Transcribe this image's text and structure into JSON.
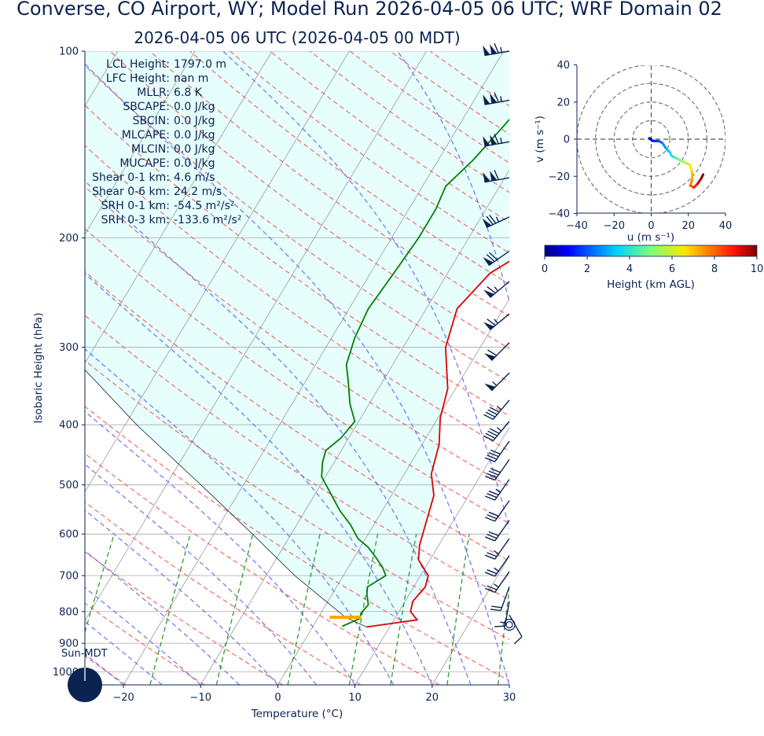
{
  "title": "Converse, CO Airport, WY; Model Run 2026-04-05 06 UTC; WRF Domain 02",
  "subtitle": "2026-04-05 06 UTC  (2026-04-05 00 MDT)",
  "colors": {
    "text": "#0b2351",
    "temperature": "#e00000",
    "dewpoint": "#008000",
    "parcel_shade": "#e6fffd",
    "dry_adiabat": "#ef5350",
    "moist_adiabat": "#4f4fef",
    "mixing_ratio": "#1e8c1e",
    "isotherm": "#9a9a9a",
    "wind_barb": "#0b2351",
    "lcl": "#ffa500"
  },
  "stats": [
    {
      "label": "LCL Height:",
      "value": "1797.0 m"
    },
    {
      "label": "LFC Height:",
      "value": "nan m"
    },
    {
      "label": "MLLR:",
      "value": "6.8 K"
    },
    {
      "label": "SBCAPE:",
      "value": "0.0 J/kg"
    },
    {
      "label": "SBCIN:",
      "value": "0.0 J/kg"
    },
    {
      "label": "MLCAPE:",
      "value": "0.0 J/kg"
    },
    {
      "label": "MLCIN:",
      "value": "0.0 J/kg"
    },
    {
      "label": "MUCAPE:",
      "value": "0.0 J/kg"
    },
    {
      "label": "Shear 0-1 km:",
      "value": "4.6 m/s"
    },
    {
      "label": "Shear 0-6 km:",
      "value": "24.2 m/s"
    },
    {
      "label": "SRH 0-1 km:",
      "value": "-54.5 m²/s²"
    },
    {
      "label": "SRH 0-3 km:",
      "value": "-133.6 m²/s²"
    }
  ],
  "sun_label": "Sun-MDT",
  "chart_data": [
    {
      "type": "line",
      "kind": "skew-T log-P",
      "xlabel": "Temperature (°C)",
      "ylabel": "Isobaric Height (hPa)",
      "xlim": [
        -25,
        30
      ],
      "ylim": [
        1050,
        100
      ],
      "x_ticks": [
        -20,
        -10,
        0,
        10,
        20,
        30
      ],
      "y_ticks": [
        100,
        200,
        300,
        400,
        500,
        600,
        700,
        800,
        900,
        1000
      ],
      "grid": true,
      "series": [
        {
          "values": [
            [
              847,
              7.0
            ],
            [
              825,
              13.0
            ],
            [
              800,
              11.5
            ],
            [
              770,
              11.0
            ],
            [
              730,
              11.5
            ],
            [
              700,
              11.0
            ],
            [
              660,
              8.5
            ],
            [
              625,
              7.5
            ],
            [
              570,
              6.5
            ],
            [
              520,
              5.5
            ],
            [
              480,
              3.5
            ],
            [
              430,
              2.2
            ],
            [
              390,
              0.3
            ],
            [
              350,
              -1.0
            ],
            [
              300,
              -4.5
            ],
            [
              260,
              -6.0
            ],
            [
              228,
              -4.5
            ],
            [
              175,
              5.0
            ],
            [
              160,
              8.0
            ],
            [
              135,
              11.5
            ],
            [
              115,
              14.5
            ],
            [
              100,
              17.0
            ]
          ]
        },
        {
          "values": [
            [
              845,
              3.8
            ],
            [
              820,
              5.5
            ],
            [
              805,
              5.2
            ],
            [
              780,
              5.5
            ],
            [
              750,
              4.5
            ],
            [
              730,
              4.0
            ],
            [
              700,
              5.5
            ],
            [
              680,
              4.5
            ],
            [
              650,
              2.5
            ],
            [
              630,
              1.0
            ],
            [
              610,
              -1.0
            ],
            [
              580,
              -3.0
            ],
            [
              550,
              -5.5
            ],
            [
              510,
              -8.5
            ],
            [
              485,
              -10.5
            ],
            [
              460,
              -11.5
            ],
            [
              440,
              -12.0
            ],
            [
              420,
              -11.0
            ],
            [
              395,
              -10.5
            ],
            [
              370,
              -12.5
            ],
            [
              340,
              -14.5
            ],
            [
              320,
              -16.0
            ],
            [
              290,
              -17.0
            ],
            [
              260,
              -17.5
            ],
            [
              230,
              -17.0
            ],
            [
              200,
              -16.5
            ],
            [
              180,
              -16.5
            ],
            [
              165,
              -17.0
            ],
            [
              150,
              -15.5
            ],
            [
              130,
              -14.0
            ],
            [
              110,
              -12.5
            ],
            [
              100,
              -11.5
            ]
          ]
        },
        {
          "values": [
            [
              847,
              7.0
            ],
            [
              817,
              3.5
            ],
            [
              700,
              -6.3
            ],
            [
              600,
              -15.0
            ],
            [
              500,
              -25.5
            ],
            [
              400,
              -38.5
            ],
            [
              300,
              -54.0
            ],
            [
              200,
              -74.0
            ],
            [
              100,
              -100.0
            ]
          ]
        }
      ],
      "lcl_pressure": 817,
      "wind_barbs": [
        {
          "p": 100,
          "spd_kt": 115,
          "dir": 260
        },
        {
          "p": 120,
          "spd_kt": 115,
          "dir": 260
        },
        {
          "p": 140,
          "spd_kt": 115,
          "dir": 260
        },
        {
          "p": 160,
          "spd_kt": 110,
          "dir": 260
        },
        {
          "p": 185,
          "spd_kt": 75,
          "dir": 245
        },
        {
          "p": 210,
          "spd_kt": 70,
          "dir": 235
        },
        {
          "p": 235,
          "spd_kt": 65,
          "dir": 230
        },
        {
          "p": 265,
          "spd_kt": 65,
          "dir": 230
        },
        {
          "p": 295,
          "spd_kt": 60,
          "dir": 225
        },
        {
          "p": 330,
          "spd_kt": 55,
          "dir": 225
        },
        {
          "p": 365,
          "spd_kt": 45,
          "dir": 220
        },
        {
          "p": 395,
          "spd_kt": 45,
          "dir": 220
        },
        {
          "p": 425,
          "spd_kt": 40,
          "dir": 215
        },
        {
          "p": 455,
          "spd_kt": 40,
          "dir": 215
        },
        {
          "p": 490,
          "spd_kt": 35,
          "dir": 215
        },
        {
          "p": 530,
          "spd_kt": 30,
          "dir": 215
        },
        {
          "p": 570,
          "spd_kt": 30,
          "dir": 215
        },
        {
          "p": 610,
          "spd_kt": 25,
          "dir": 215
        },
        {
          "p": 650,
          "spd_kt": 25,
          "dir": 215
        },
        {
          "p": 690,
          "spd_kt": 25,
          "dir": 215
        },
        {
          "p": 730,
          "spd_kt": 20,
          "dir": 200
        },
        {
          "p": 770,
          "spd_kt": 15,
          "dir": 190
        },
        {
          "p": 810,
          "spd_kt": 10,
          "dir": 150
        },
        {
          "p": 840,
          "spd_kt": 0,
          "dir": 0
        }
      ]
    },
    {
      "type": "line",
      "kind": "hodograph",
      "xlabel": "u (m s⁻¹)",
      "ylabel": "v (m s⁻¹)",
      "xlim": [
        -40,
        40
      ],
      "ylim": [
        -40,
        40
      ],
      "x_ticks": [
        -40,
        -20,
        0,
        20,
        40
      ],
      "y_ticks": [
        40,
        20,
        0,
        -20,
        -40
      ],
      "rings": [
        10,
        20,
        30,
        40
      ],
      "points": [
        [
          0,
          0,
          0.0
        ],
        [
          -1,
          0.5,
          0.3
        ],
        [
          0.5,
          -0.8,
          0.6
        ],
        [
          2,
          -1,
          1.0
        ],
        [
          4,
          -1,
          1.5
        ],
        [
          6,
          -2,
          2.0
        ],
        [
          8,
          -5,
          2.6
        ],
        [
          10,
          -7,
          3.2
        ],
        [
          11,
          -9,
          3.6
        ],
        [
          13,
          -10,
          4.0
        ],
        [
          15,
          -11,
          4.5
        ],
        [
          17,
          -12,
          5.0
        ],
        [
          19,
          -13,
          5.6
        ],
        [
          21,
          -14,
          6.1
        ],
        [
          22,
          -18,
          6.6
        ],
        [
          22,
          -22,
          7.1
        ],
        [
          21,
          -25,
          7.6
        ],
        [
          23,
          -26,
          8.2
        ],
        [
          25,
          -24,
          8.8
        ],
        [
          27,
          -21,
          9.4
        ],
        [
          28,
          -19,
          10.0
        ]
      ]
    }
  ],
  "colorbar": {
    "label": "Height (km AGL)",
    "ticks": [
      0,
      2,
      4,
      6,
      8,
      10
    ],
    "range": [
      0,
      10
    ]
  }
}
